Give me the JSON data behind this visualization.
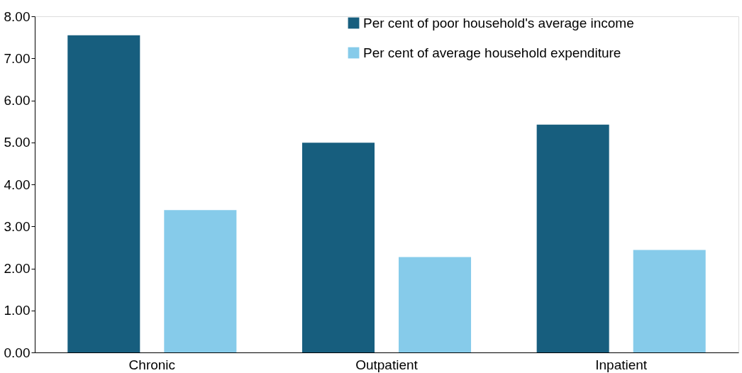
{
  "chart_data": {
    "type": "bar",
    "categories": [
      "Chronic",
      "Outpatient",
      "Inpatient"
    ],
    "series": [
      {
        "name": "Per cent of poor household's average income",
        "color": "#175e7e",
        "values": [
          7.55,
          4.99,
          5.42
        ]
      },
      {
        "name": "Per cent of average household expenditure",
        "color": "#86cbea",
        "values": [
          3.39,
          2.27,
          2.44
        ]
      }
    ],
    "ylim": [
      0,
      8
    ],
    "yticks": [
      {
        "value": 0,
        "label": "0.00"
      },
      {
        "value": 1,
        "label": "1.00"
      },
      {
        "value": 2,
        "label": "2.00"
      },
      {
        "value": 3,
        "label": "3.00"
      },
      {
        "value": 4,
        "label": "4.00"
      },
      {
        "value": 5,
        "label": "5.00"
      },
      {
        "value": 6,
        "label": "6.00"
      },
      {
        "value": 7,
        "label": "7.00"
      },
      {
        "value": 8,
        "label": "8.00"
      }
    ],
    "grid": false,
    "legend": "top right"
  }
}
